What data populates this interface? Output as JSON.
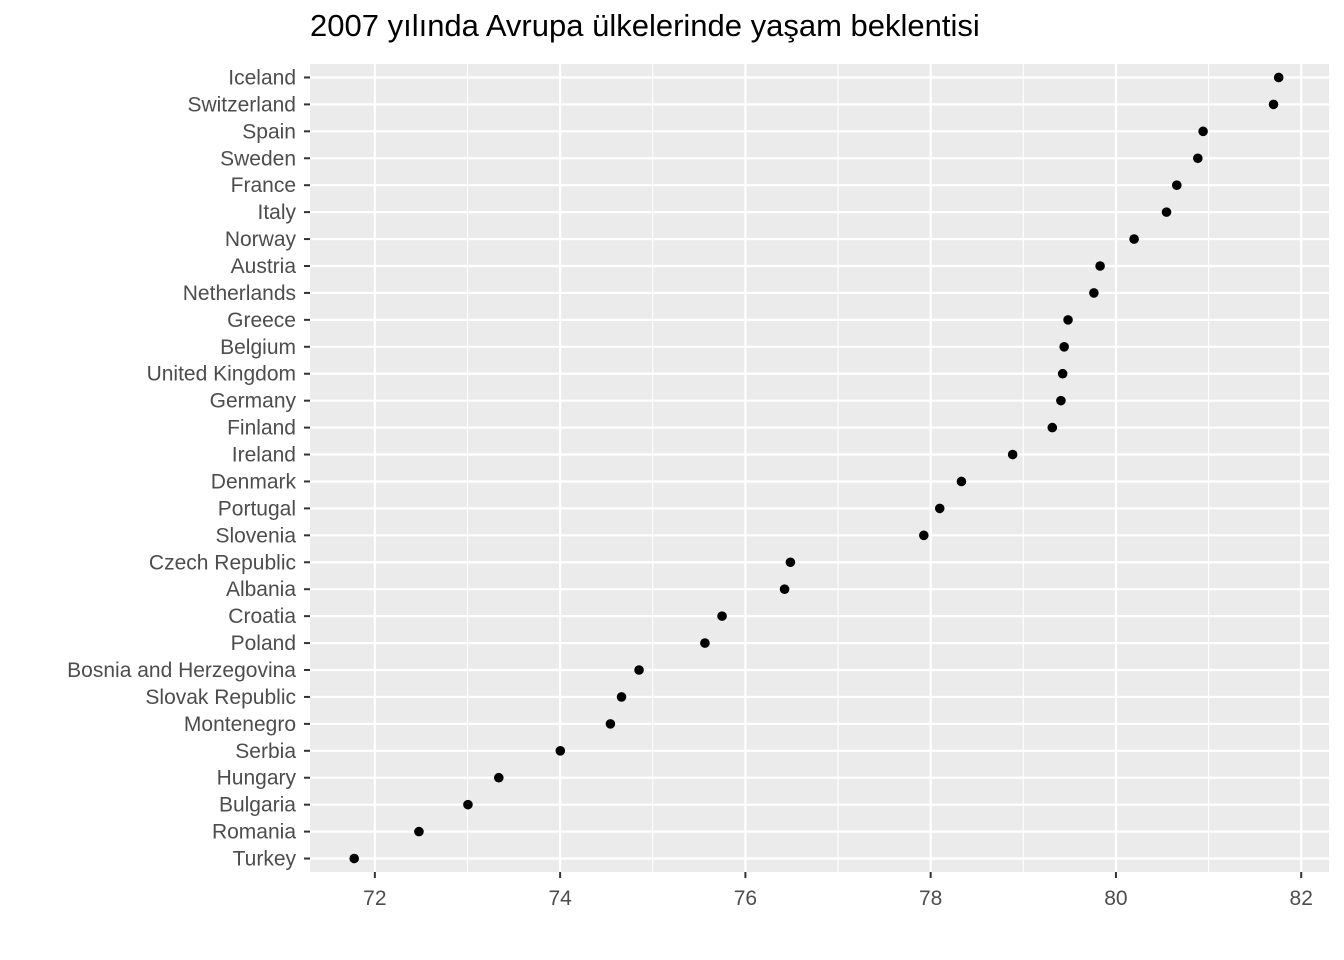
{
  "chart_data": {
    "type": "scatter",
    "title": "2007 yılında Avrupa ülkelerinde yaşam beklentisi",
    "xlabel": "",
    "ylabel": "",
    "xlim": [
      71.3,
      82.3
    ],
    "x_ticks": [
      72,
      74,
      76,
      78,
      80,
      82
    ],
    "grid": true,
    "legend": "none",
    "colors": {
      "panel_bg": "#ebebeb",
      "grid": "#ffffff",
      "point": "#000000",
      "tick_text": "#4d4d4d",
      "tick_mark": "#333333"
    },
    "categories": [
      "Iceland",
      "Switzerland",
      "Spain",
      "Sweden",
      "France",
      "Italy",
      "Norway",
      "Austria",
      "Netherlands",
      "Greece",
      "Belgium",
      "United Kingdom",
      "Germany",
      "Finland",
      "Ireland",
      "Denmark",
      "Portugal",
      "Slovenia",
      "Czech Republic",
      "Albania",
      "Croatia",
      "Poland",
      "Bosnia and Herzegovina",
      "Slovak Republic",
      "Montenegro",
      "Serbia",
      "Hungary",
      "Bulgaria",
      "Romania",
      "Turkey"
    ],
    "values": [
      81.757,
      81.701,
      80.941,
      80.884,
      80.657,
      80.546,
      80.196,
      79.829,
      79.762,
      79.483,
      79.441,
      79.425,
      79.406,
      79.313,
      78.885,
      78.332,
      78.098,
      77.926,
      76.486,
      76.423,
      75.748,
      75.563,
      74.852,
      74.663,
      74.543,
      74.002,
      73.338,
      73.005,
      72.476,
      71.777
    ]
  }
}
